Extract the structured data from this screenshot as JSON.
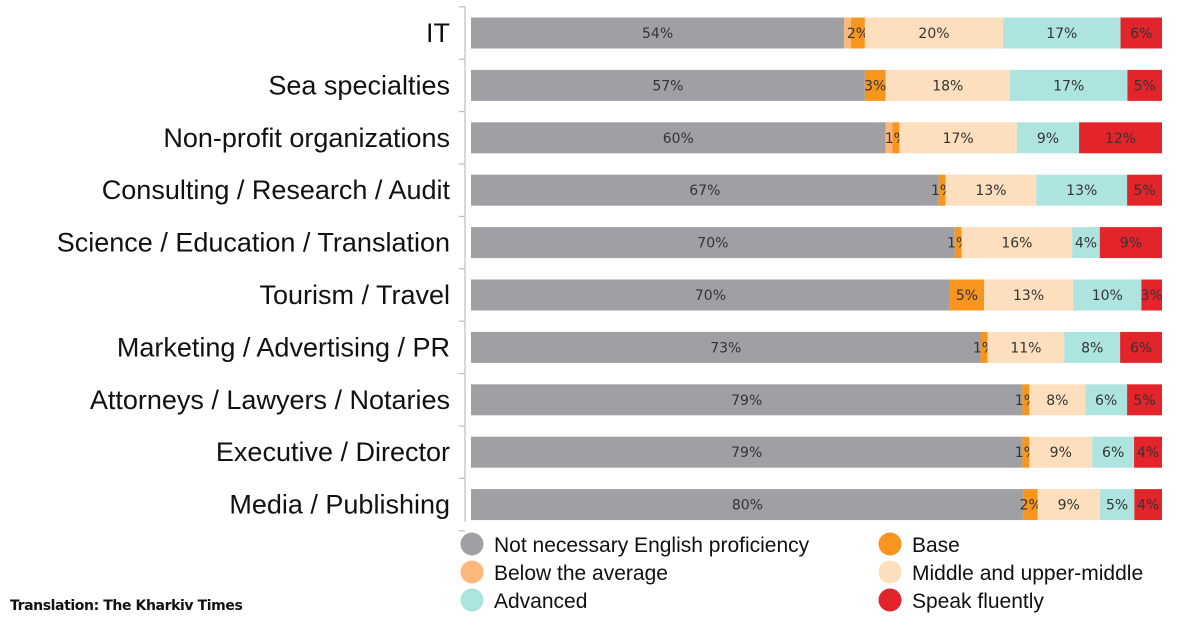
{
  "chart_data": {
    "type": "bar",
    "orientation": "horizontal",
    "stacked": true,
    "categories": [
      "IT",
      "Sea specialties",
      "Non-profit organizations",
      "Consulting / Research / Audit",
      "Science / Education / Translation",
      "Tourism / Travel",
      "Marketing / Advertising / PR",
      "Attorneys / Lawyers / Notaries",
      "Executive / Director",
      "Media / Publishing"
    ],
    "series": [
      {
        "name": "Not necessary English proficiency",
        "color": "#a0a0a4",
        "values": [
          54,
          57,
          60,
          67,
          70,
          70,
          73,
          79,
          79,
          80
        ]
      },
      {
        "name": "Below the average",
        "color": "#fcb77a",
        "values": [
          1,
          0,
          1,
          0,
          0,
          0,
          0,
          0,
          0,
          0
        ]
      },
      {
        "name": "Base",
        "color": "#f7951e",
        "values": [
          2,
          3,
          1,
          1,
          1,
          5,
          1,
          1,
          1,
          2
        ]
      },
      {
        "name": "Middle and upper-middle",
        "color": "#fddfbe",
        "values": [
          20,
          18,
          17,
          13,
          16,
          13,
          11,
          8,
          9,
          9
        ]
      },
      {
        "name": "Advanced",
        "color": "#aee4df",
        "values": [
          17,
          17,
          9,
          13,
          4,
          10,
          8,
          6,
          6,
          5
        ]
      },
      {
        "name": "Speak fluently",
        "color": "#e3242b",
        "values": [
          6,
          5,
          12,
          5,
          9,
          3,
          6,
          5,
          4,
          4
        ]
      }
    ],
    "labels": [
      [
        "54%",
        "",
        "2%",
        "20%",
        "17%",
        "6%"
      ],
      [
        "57%",
        "",
        "3%",
        "18%",
        "17%",
        "5%"
      ],
      [
        "60%",
        "",
        "1%",
        "17%",
        "9%",
        "12%"
      ],
      [
        "67%",
        "",
        "1%",
        "13%",
        "13%",
        "5%"
      ],
      [
        "70%",
        "",
        "1%",
        "16%",
        "4%",
        "9%"
      ],
      [
        "70%",
        "",
        "5%",
        "13%",
        "10%",
        "3%"
      ],
      [
        "73%",
        "",
        "1%",
        "11%",
        "8%",
        "6%"
      ],
      [
        "79%",
        "",
        "1%",
        "8%",
        "6%",
        "5%"
      ],
      [
        "79%",
        "",
        "1%",
        "9%",
        "6%",
        "4%"
      ],
      [
        "80%",
        "",
        "2%",
        "9%",
        "5%",
        "4%"
      ]
    ],
    "legend": {
      "placement": "bottom",
      "columns": [
        [
          "Not necessary English proficiency",
          "Below the average",
          "Advanced"
        ],
        [
          "Base",
          "Middle and upper-middle",
          "Speak fluently"
        ]
      ]
    }
  },
  "credit": "Translation: The Kharkiv Times"
}
